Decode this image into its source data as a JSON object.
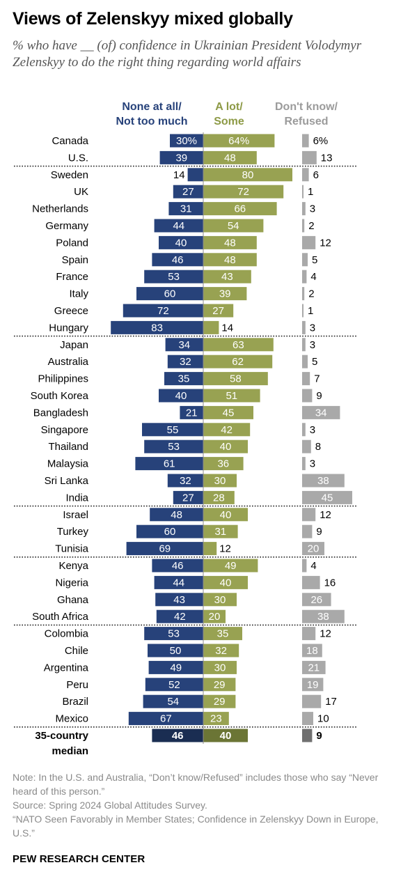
{
  "title": "Views of Zelenskyy mixed globally",
  "subtitle": "% who have __ (of) confidence in Ukrainian President Volodymyr Zelenskyy to do the right thing regarding world affairs",
  "colors": {
    "none": "#27427a",
    "alot": "#98a252",
    "dk": "#a9a9a9",
    "none_median": "#1a2d52",
    "alot_median": "#6b7535",
    "dk_median": "#707070",
    "none_header": "#27427a",
    "alot_header": "#8d9a46",
    "dk_header": "#9b9b9b"
  },
  "chart_data": {
    "type": "bar",
    "orientation": "horizontal-diverging",
    "series": [
      {
        "key": "none",
        "name": [
          "None at all/",
          "Not too much"
        ]
      },
      {
        "key": "alot",
        "name": [
          "A lot/",
          "Some"
        ]
      },
      {
        "key": "dk",
        "name": [
          "Don't know/",
          "Refused"
        ]
      }
    ],
    "groups": [
      [
        {
          "country": "Canada",
          "none": 30,
          "alot": 64,
          "dk": 6,
          "label_none": "30%",
          "label_alot": "64%",
          "label_dk": "6%"
        },
        {
          "country": "U.S.",
          "none": 39,
          "alot": 48,
          "dk": 13
        }
      ],
      [
        {
          "country": "Sweden",
          "none": 14,
          "alot": 80,
          "dk": 6
        },
        {
          "country": "UK",
          "none": 27,
          "alot": 72,
          "dk": 1
        },
        {
          "country": "Netherlands",
          "none": 31,
          "alot": 66,
          "dk": 3
        },
        {
          "country": "Germany",
          "none": 44,
          "alot": 54,
          "dk": 2
        },
        {
          "country": "Poland",
          "none": 40,
          "alot": 48,
          "dk": 12
        },
        {
          "country": "Spain",
          "none": 46,
          "alot": 48,
          "dk": 5
        },
        {
          "country": "France",
          "none": 53,
          "alot": 43,
          "dk": 4
        },
        {
          "country": "Italy",
          "none": 60,
          "alot": 39,
          "dk": 2
        },
        {
          "country": "Greece",
          "none": 72,
          "alot": 27,
          "dk": 1
        },
        {
          "country": "Hungary",
          "none": 83,
          "alot": 14,
          "dk": 3
        }
      ],
      [
        {
          "country": "Japan",
          "none": 34,
          "alot": 63,
          "dk": 3
        },
        {
          "country": "Australia",
          "none": 32,
          "alot": 62,
          "dk": 5
        },
        {
          "country": "Philippines",
          "none": 35,
          "alot": 58,
          "dk": 7
        },
        {
          "country": "South Korea",
          "none": 40,
          "alot": 51,
          "dk": 9
        },
        {
          "country": "Bangladesh",
          "none": 21,
          "alot": 45,
          "dk": 34
        },
        {
          "country": "Singapore",
          "none": 55,
          "alot": 42,
          "dk": 3
        },
        {
          "country": "Thailand",
          "none": 53,
          "alot": 40,
          "dk": 8
        },
        {
          "country": "Malaysia",
          "none": 61,
          "alot": 36,
          "dk": 3
        },
        {
          "country": "Sri Lanka",
          "none": 32,
          "alot": 30,
          "dk": 38
        },
        {
          "country": "India",
          "none": 27,
          "alot": 28,
          "dk": 45
        }
      ],
      [
        {
          "country": "Israel",
          "none": 48,
          "alot": 40,
          "dk": 12
        },
        {
          "country": "Turkey",
          "none": 60,
          "alot": 31,
          "dk": 9
        },
        {
          "country": "Tunisia",
          "none": 69,
          "alot": 12,
          "dk": 20
        }
      ],
      [
        {
          "country": "Kenya",
          "none": 46,
          "alot": 49,
          "dk": 4
        },
        {
          "country": "Nigeria",
          "none": 44,
          "alot": 40,
          "dk": 16
        },
        {
          "country": "Ghana",
          "none": 43,
          "alot": 30,
          "dk": 26
        },
        {
          "country": "South Africa",
          "none": 42,
          "alot": 20,
          "dk": 38
        }
      ],
      [
        {
          "country": "Colombia",
          "none": 53,
          "alot": 35,
          "dk": 12
        },
        {
          "country": "Chile",
          "none": 50,
          "alot": 32,
          "dk": 18
        },
        {
          "country": "Argentina",
          "none": 49,
          "alot": 30,
          "dk": 21
        },
        {
          "country": "Peru",
          "none": 52,
          "alot": 29,
          "dk": 19
        },
        {
          "country": "Brazil",
          "none": 54,
          "alot": 29,
          "dk": 17
        },
        {
          "country": "Mexico",
          "none": 67,
          "alot": 23,
          "dk": 10
        }
      ]
    ],
    "median": {
      "country": [
        "35-country",
        "median"
      ],
      "none": 46,
      "alot": 40,
      "dk": 9
    }
  },
  "notes": [
    "Note: In the U.S. and Australia, “Don’t know/Refused” includes those who say “Never heard of this person.”",
    "Source: Spring 2024 Global Attitudes Survey.",
    "“NATO Seen Favorably in Member States; Confidence in Zelenskyy Down in Europe, U.S.”"
  ],
  "footer": "PEW RESEARCH CENTER"
}
